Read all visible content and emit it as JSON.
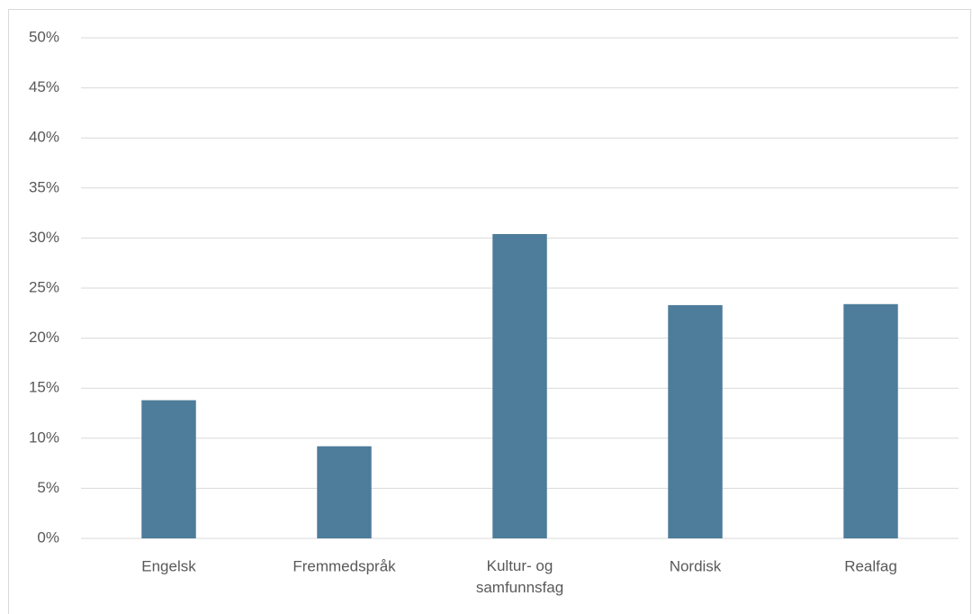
{
  "chart_data": {
    "type": "bar",
    "categories": [
      "Engelsk",
      "Fremmedspråk",
      "Kultur- og samfunnsfag",
      "Nordisk",
      "Realfag"
    ],
    "values": [
      13.8,
      9.2,
      30.4,
      23.3,
      23.4
    ],
    "color": "#4e7c9b",
    "ylim": [
      0,
      50
    ],
    "yticks": [
      {
        "value": 0,
        "label": "0%"
      },
      {
        "value": 5,
        "label": "5%"
      },
      {
        "value": 10,
        "label": "10%"
      },
      {
        "value": 15,
        "label": "15%"
      },
      {
        "value": 20,
        "label": "20%"
      },
      {
        "value": 25,
        "label": "25%"
      },
      {
        "value": 30,
        "label": "30%"
      },
      {
        "value": 35,
        "label": "35%"
      },
      {
        "value": 40,
        "label": "40%"
      },
      {
        "value": 45,
        "label": "45%"
      },
      {
        "value": 50,
        "label": "50%"
      }
    ],
    "grid": true
  }
}
